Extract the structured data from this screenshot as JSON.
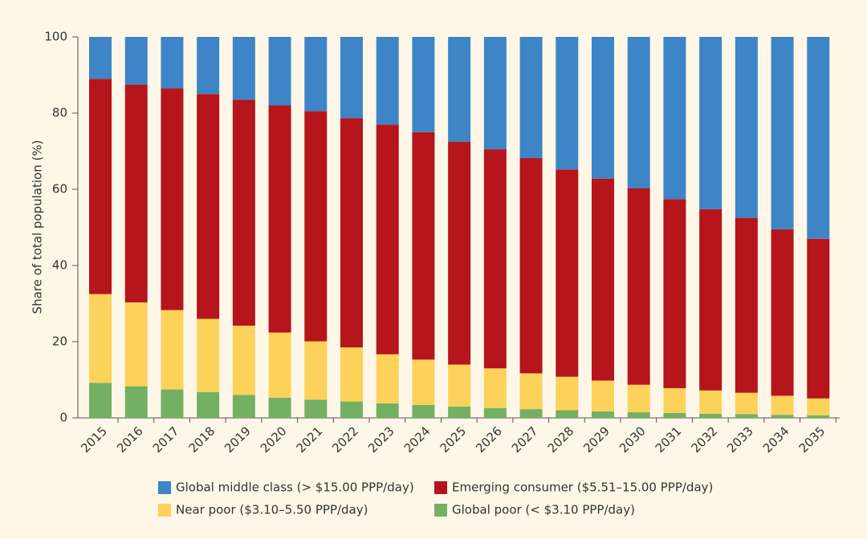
{
  "chart_data": {
    "type": "stacked_bar",
    "ylabel": "Share of total population (%)",
    "categories": [
      "2015",
      "2016",
      "2017",
      "2018",
      "2019",
      "2020",
      "2021",
      "2022",
      "2023",
      "2024",
      "2025",
      "2026",
      "2027",
      "2028",
      "2029",
      "2030",
      "2031",
      "2032",
      "2033",
      "2034",
      "2035"
    ],
    "series": [
      {
        "name": "Global poor (< $3.10 PPP/day)",
        "color": "#74b063",
        "values": [
          9.2,
          8.3,
          7.5,
          6.8,
          6.0,
          5.3,
          4.8,
          4.3,
          3.8,
          3.4,
          3.0,
          2.6,
          2.3,
          2.0,
          1.7,
          1.5,
          1.3,
          1.1,
          1.0,
          0.8,
          0.7
        ]
      },
      {
        "name": "Near poor ($3.10–5.50 PPP/day)",
        "color": "#fdd25b",
        "values": [
          23.3,
          22.0,
          20.8,
          19.2,
          18.2,
          17.1,
          15.3,
          14.2,
          12.9,
          11.9,
          11.0,
          10.4,
          9.4,
          8.8,
          8.1,
          7.2,
          6.5,
          6.1,
          5.6,
          5.0,
          4.4
        ]
      },
      {
        "name": "Emerging consumer ($5.51–15.00 PPP/day)",
        "color": "#b5151b",
        "values": [
          56.5,
          57.2,
          58.2,
          59.0,
          59.3,
          59.6,
          60.4,
          60.2,
          60.3,
          59.7,
          58.5,
          57.5,
          56.5,
          54.4,
          53.0,
          51.6,
          49.6,
          47.6,
          45.9,
          43.7,
          41.9
        ]
      },
      {
        "name": "Global middle class (> $15.00 PPP/day)",
        "color": "#3d85c6",
        "values": [
          11.0,
          12.5,
          13.5,
          15.0,
          16.5,
          18.0,
          19.5,
          21.3,
          23.0,
          25.0,
          27.5,
          29.5,
          31.8,
          34.8,
          37.2,
          39.7,
          42.6,
          45.2,
          47.5,
          50.5,
          53.0
        ]
      }
    ],
    "ylim": [
      0,
      100
    ],
    "yticks": [
      0,
      20,
      40,
      60,
      80,
      100
    ]
  }
}
